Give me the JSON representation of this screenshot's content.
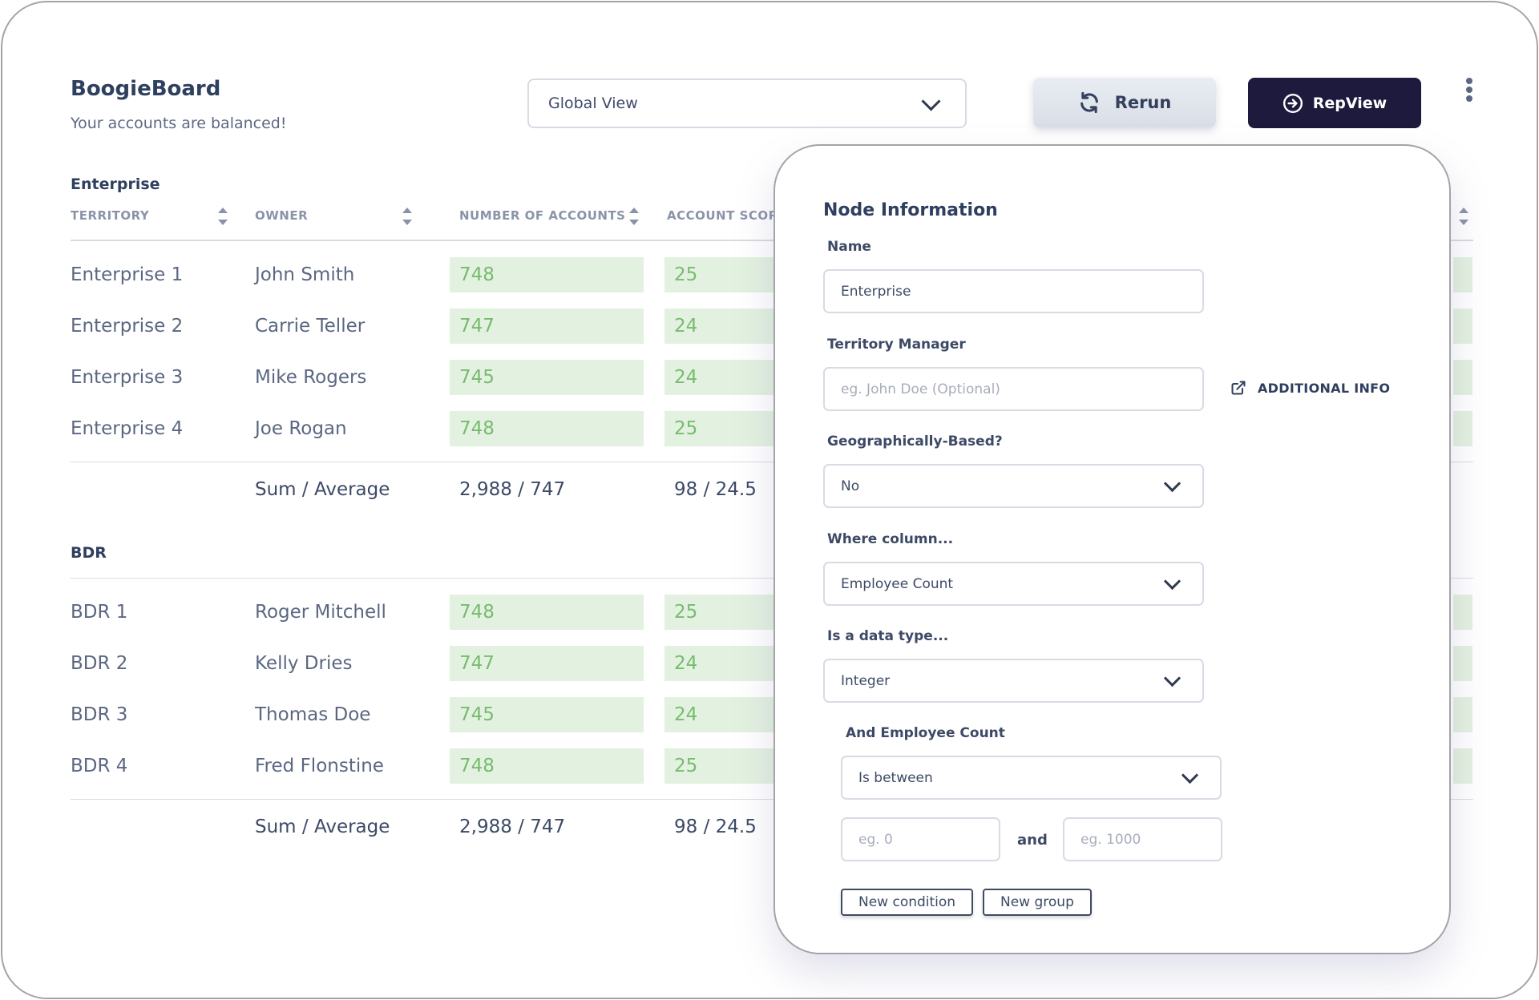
{
  "app": {
    "title": "BoogieBoard",
    "subtitle": "Your accounts are balanced!"
  },
  "view_select": {
    "value": "Global View"
  },
  "buttons": {
    "rerun": "Rerun",
    "repview": "RepView"
  },
  "table": {
    "columns": [
      "TERRITORY",
      "OWNER",
      "NUMBER OF ACCOUNTS",
      "ACCOUNT SCORE"
    ],
    "sections": [
      {
        "name": "Enterprise",
        "rows": [
          {
            "territory": "Enterprise 1",
            "owner": "John Smith",
            "accounts": "748",
            "score": "25"
          },
          {
            "territory": "Enterprise 2",
            "owner": "Carrie Teller",
            "accounts": "747",
            "score": "24"
          },
          {
            "territory": "Enterprise 3",
            "owner": "Mike Rogers",
            "accounts": "745",
            "score": "24"
          },
          {
            "territory": "Enterprise 4",
            "owner": "Joe Rogan",
            "accounts": "748",
            "score": "25"
          }
        ],
        "summary": {
          "label": "Sum / Average",
          "accounts": "2,988 / 747",
          "score": "98 / 24.5"
        }
      },
      {
        "name": "BDR",
        "rows": [
          {
            "territory": "BDR 1",
            "owner": "Roger Mitchell",
            "accounts": "748",
            "score": "25"
          },
          {
            "territory": "BDR 2",
            "owner": "Kelly Dries",
            "accounts": "747",
            "score": "24"
          },
          {
            "territory": "BDR 3",
            "owner": "Thomas Doe",
            "accounts": "745",
            "score": "24"
          },
          {
            "territory": "BDR 4",
            "owner": "Fred Flonstine",
            "accounts": "748",
            "score": "25"
          }
        ],
        "summary": {
          "label": "Sum / Average",
          "accounts": "2,988 / 747",
          "score": "98 / 24.5"
        }
      }
    ]
  },
  "panel": {
    "title": "Node Information",
    "name_label": "Name",
    "name_value": "Enterprise",
    "manager_label": "Territory Manager",
    "manager_placeholder": "eg. John Doe (Optional)",
    "additional_info": "ADDITIONAL INFO",
    "geo_label": "Geographically-Based?",
    "geo_value": "No",
    "column_label": "Where column...",
    "column_value": "Employee Count",
    "datatype_label": "Is a data type...",
    "datatype_value": "Integer",
    "condition_label": "And Employee Count",
    "condition_value": "Is between",
    "min_placeholder": "eg. 0",
    "and_text": "and",
    "max_placeholder": "eg. 1000",
    "new_condition": "New condition",
    "new_group": "New group"
  }
}
